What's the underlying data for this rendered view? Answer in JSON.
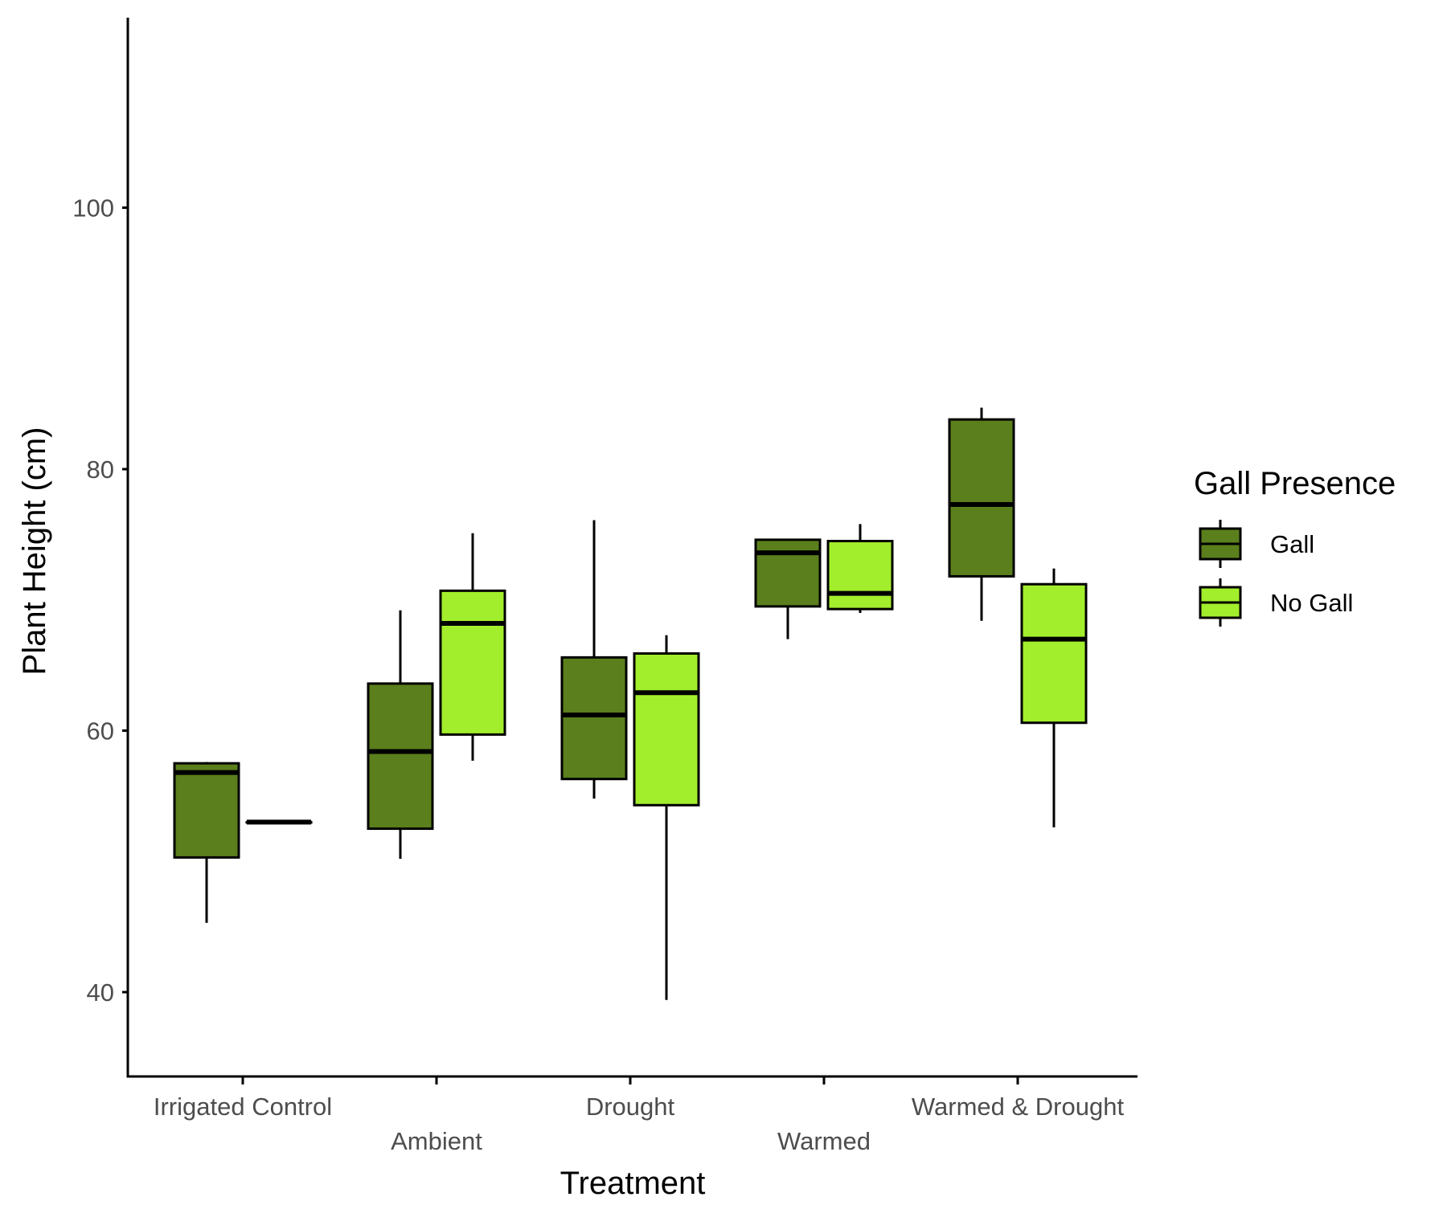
{
  "chart_data": {
    "type": "boxplot",
    "xlabel": "Treatment",
    "ylabel": "Plant Height (cm)",
    "ylim": [
      34,
      115
    ],
    "yticks": [
      40,
      60,
      80,
      100
    ],
    "categories": [
      "Irrigated Control",
      "Ambient",
      "Drought",
      "Warmed",
      "Warmed & Drought"
    ],
    "legend": {
      "title": "Gall Presence",
      "placement": "right"
    },
    "series": [
      {
        "name": "Gall",
        "color": "#5a7f1c",
        "boxes": [
          {
            "min": 45.3,
            "q1": 50.3,
            "median": 56.8,
            "q3": 57.5,
            "max": 57.6
          },
          {
            "min": 50.2,
            "q1": 52.5,
            "median": 58.4,
            "q3": 63.6,
            "max": 69.2
          },
          {
            "min": 54.8,
            "q1": 56.3,
            "median": 61.2,
            "q3": 65.6,
            "max": 76.1
          },
          {
            "min": 67.0,
            "q1": 69.5,
            "median": 73.6,
            "q3": 74.6,
            "max": 74.6
          },
          {
            "min": 68.4,
            "q1": 71.8,
            "median": 77.3,
            "q3": 83.8,
            "max": 84.7
          }
        ]
      },
      {
        "name": "No Gall",
        "color": "#a3ee2c",
        "boxes": [
          {
            "min": 53.0,
            "q1": 53.0,
            "median": 53.0,
            "q3": 53.0,
            "max": 53.0
          },
          {
            "min": 57.7,
            "q1": 59.7,
            "median": 68.2,
            "q3": 70.7,
            "max": 75.1
          },
          {
            "min": 39.4,
            "q1": 54.3,
            "median": 62.9,
            "q3": 65.9,
            "max": 67.3
          },
          {
            "min": 69.0,
            "q1": 69.3,
            "median": 70.5,
            "q3": 74.5,
            "max": 75.8
          },
          {
            "min": 52.6,
            "q1": 60.6,
            "median": 67.0,
            "q3": 71.2,
            "max": 72.4
          }
        ]
      }
    ]
  }
}
